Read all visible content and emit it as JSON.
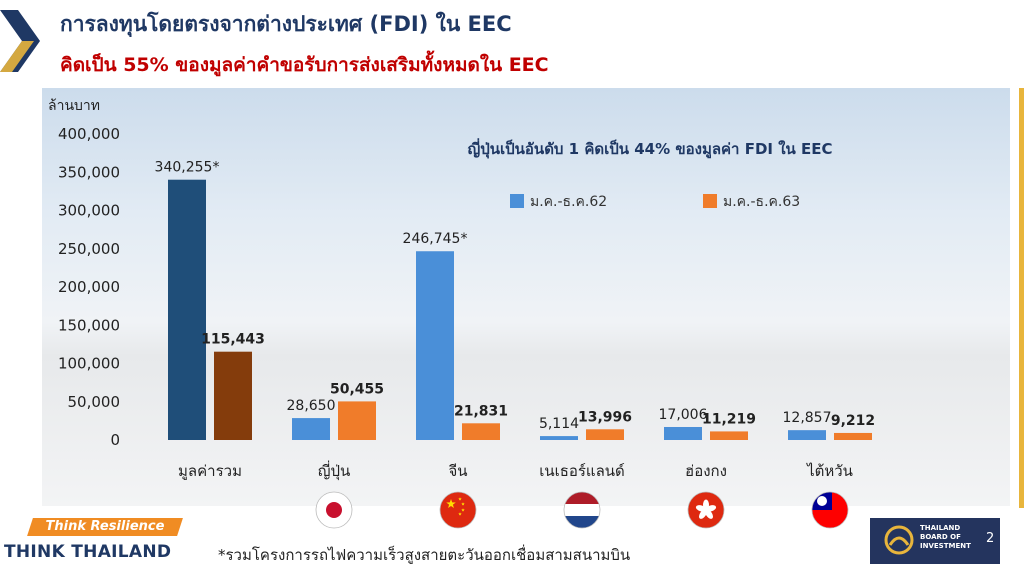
{
  "title": "การลงทุนโดยตรงจากต่างประเทศ (FDI) ใน EEC",
  "subtitle": "คิดเป็น 55% ของมูลค่าคำขอรับการส่งเสริมทั้งหมดใน EEC",
  "footnote": "*รวมโครงการรถไฟความเร็วสูงสายตะวันออกเชื่อมสามสนามบิน",
  "page_number": "2",
  "logo": {
    "think_resilience": "Think Resilience",
    "think_thailand": "THINK THAILAND",
    "boi_lines": [
      "THAILAND",
      "BOARD OF",
      "INVESTMENT"
    ]
  },
  "colors": {
    "series_2019": "#4a8fd8",
    "series_2020": "#f07c2a",
    "total_2019": "#1f4e79",
    "total_2020": "#843c0c",
    "title": "#1f3864",
    "subtitle": "#c00000"
  },
  "chart_data": {
    "type": "bar",
    "ylabel": "ล้านบาท",
    "ylim": [
      0,
      400000
    ],
    "yticks": [
      "400,000",
      "350,000",
      "300,000",
      "250,000",
      "200,000",
      "150,000",
      "100,000",
      "50,000",
      "0"
    ],
    "ytick_values": [
      400000,
      350000,
      300000,
      250000,
      200000,
      150000,
      100000,
      50000,
      0
    ],
    "annotation": "ญี่ปุ่นเป็นอันดับ 1 คิดเป็น 44% ของมูลค่า FDI ใน EEC",
    "categories": [
      "มูลค่ารวม",
      "ญี่ปุ่น",
      "จีน",
      "เนเธอร์แลนด์",
      "ฮ่องกง",
      "ไต้หวัน"
    ],
    "flags": [
      "",
      "japan-flag",
      "china-flag",
      "netherlands-flag",
      "hong-kong-flag",
      "taiwan-flag"
    ],
    "series": [
      {
        "name": "ม.ค.-ธ.ค.62",
        "values": [
          340255,
          28650,
          246745,
          5114,
          17006,
          12857
        ],
        "labels": [
          "340,255*",
          "28,650",
          "246,745*",
          "5,114",
          "17,006",
          "12,857"
        ]
      },
      {
        "name": "ม.ค.-ธ.ค.63",
        "values": [
          115443,
          50455,
          21831,
          13996,
          11219,
          9212
        ],
        "labels": [
          "115,443",
          "50,455",
          "21,831",
          "13,996",
          "11,219",
          "9,212"
        ]
      }
    ],
    "grid": false,
    "legend": "top-right"
  }
}
